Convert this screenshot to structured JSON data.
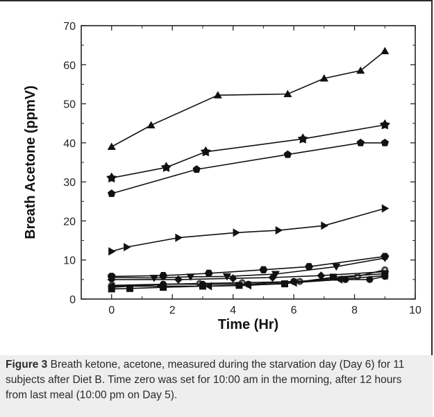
{
  "chart_data": {
    "type": "line",
    "xlabel": "Time (Hr)",
    "ylabel": "Breath Acetone (ppmV)",
    "xlim": [
      -1,
      10
    ],
    "ylim": [
      0,
      70
    ],
    "xticks": [
      0,
      2,
      4,
      6,
      8,
      10
    ],
    "yticks": [
      0,
      10,
      20,
      30,
      40,
      50,
      60,
      70
    ],
    "grid": false,
    "legend": "none",
    "series": [
      {
        "marker": "triangle-up",
        "x": [
          0,
          1.3,
          3.5,
          5.8,
          7,
          8.2,
          9
        ],
        "y": [
          39,
          44.5,
          52.2,
          52.5,
          56.5,
          58.5,
          63.5
        ]
      },
      {
        "marker": "star",
        "x": [
          0,
          1.8,
          3.1,
          6.3,
          9
        ],
        "y": [
          31,
          33.7,
          37.7,
          41,
          44.6
        ]
      },
      {
        "marker": "pentagon",
        "x": [
          0,
          2.8,
          5.8,
          8.2,
          9
        ],
        "y": [
          27,
          33.2,
          37,
          40,
          40
        ]
      },
      {
        "marker": "triangle-right",
        "x": [
          0,
          0.5,
          2.2,
          4.1,
          5.5,
          7,
          9
        ],
        "y": [
          12.2,
          13.3,
          15.7,
          17,
          17.6,
          18.8,
          23.2
        ]
      },
      {
        "marker": "hexagon",
        "x": [
          0,
          1.7,
          3.2,
          5,
          6.5,
          9
        ],
        "y": [
          5.8,
          6,
          6.6,
          7.5,
          8.3,
          10.9
        ]
      },
      {
        "marker": "triangle-down",
        "x": [
          0,
          1.4,
          2.6,
          3.8,
          5.4,
          7.4,
          9
        ],
        "y": [
          5.5,
          5.4,
          5.7,
          5.8,
          6.4,
          8.3,
          10.5
        ]
      },
      {
        "marker": "diamond",
        "x": [
          0,
          2.2,
          4,
          5.3,
          6.9,
          9
        ],
        "y": [
          5,
          5,
          5.3,
          5.5,
          6,
          7
        ]
      },
      {
        "marker": "circle-dot",
        "x": [
          0,
          2.9,
          4.3,
          6.2,
          8.1,
          9
        ],
        "y": [
          3.5,
          4,
          4.2,
          4.5,
          5.8,
          7.5
        ]
      },
      {
        "marker": "circle",
        "x": [
          0,
          1.7,
          3,
          4.5,
          6,
          7.7,
          8.5,
          9
        ],
        "y": [
          3,
          3.8,
          3.8,
          3.8,
          4.5,
          5,
          5,
          5.8
        ]
      },
      {
        "marker": "square",
        "x": [
          0,
          0.6,
          1.7,
          3,
          4.2,
          5.7,
          7.3,
          9
        ],
        "y": [
          2.6,
          2.7,
          3,
          3.3,
          3.5,
          3.9,
          5.6,
          6.5
        ]
      },
      {
        "marker": "triangle-left",
        "x": [
          0,
          1.6,
          3.2,
          4.5,
          6,
          7.5,
          9
        ],
        "y": [
          3.3,
          3.3,
          3.3,
          3.5,
          4.2,
          5,
          6
        ]
      }
    ]
  },
  "caption": {
    "label": "Figure 3",
    "text": " Breath ketone, acetone, measured during the starvation day (Day 6) for 11 subjects after Diet B. Time zero was set for 10:00 am in the morning, after 12 hours from last meal (10:00 pm on Day 5)."
  }
}
